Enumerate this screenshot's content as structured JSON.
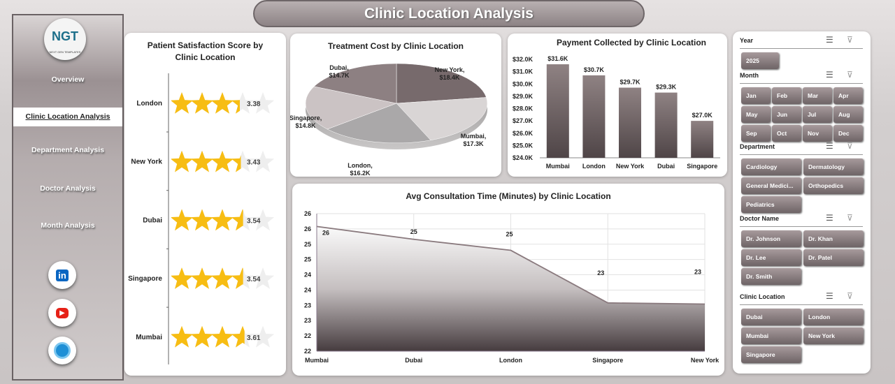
{
  "title": "Clinic Location Analysis",
  "sidebar": {
    "logo_text": "NGT",
    "logo_sub": "NEXT GEN TEMPLATES",
    "items": [
      {
        "label": "Overview"
      },
      {
        "label": "Clinic Location Analysis",
        "active": true
      },
      {
        "label": "Department Analysis"
      },
      {
        "label": "Doctor Analysis"
      },
      {
        "label": "Month Analysis"
      }
    ],
    "social": [
      {
        "icon": "linkedin-icon",
        "text": "in",
        "color": "#0a66c2"
      },
      {
        "icon": "youtube-icon",
        "text": "▶",
        "color": "#e62117"
      },
      {
        "icon": "globe-icon",
        "text": "🌐",
        "color": "#1e8fd6"
      }
    ]
  },
  "chart_data": [
    {
      "type": "bar",
      "title": "Patient Satisfaction Score by Clinic Location",
      "style": "star-rating",
      "max": 5,
      "categories": [
        "London",
        "New York",
        "Dubai",
        "Singapore",
        "Mumbai"
      ],
      "values": [
        3.38,
        3.43,
        3.54,
        3.54,
        3.61
      ],
      "labels": [
        "3.38",
        "3.43",
        "3.54",
        "3.54",
        "3.61"
      ],
      "fill_color": "#f7bd13"
    },
    {
      "type": "pie",
      "title": "Treatment Cost by Clinic Location",
      "categories": [
        "New York",
        "Mumbai",
        "London",
        "Singapore",
        "Dubai"
      ],
      "values": [
        18.4,
        17.3,
        16.2,
        14.8,
        14.7
      ],
      "labels": [
        "New York,\n$18.4K",
        "Mumbai,\n$17.3K",
        "London,\n$16.2K",
        "Singapore,\n$14.8K",
        "Dubai,\n$14.7K"
      ],
      "colors": [
        "#776a6c",
        "#d9d5d5",
        "#aaa8a9",
        "#cbc3c4",
        "#8d8082"
      ]
    },
    {
      "type": "bar",
      "title": "Payment Collected by Clinic Location",
      "categories": [
        "Mumbai",
        "London",
        "New York",
        "Dubai",
        "Singapore"
      ],
      "values": [
        31.6,
        30.7,
        29.7,
        29.3,
        27.0
      ],
      "labels": [
        "$31.6K",
        "$30.7K",
        "$29.7K",
        "$29.3K",
        "$27.0K"
      ],
      "ylim": [
        24,
        32
      ],
      "yticks": [
        "$24.0K",
        "$25.0K",
        "$26.0K",
        "$27.0K",
        "$28.0K",
        "$29.0K",
        "$30.0K",
        "$31.0K",
        "$32.0K"
      ]
    },
    {
      "type": "area",
      "title": "Avg Consultation Time (Minutes) by Clinic Location",
      "categories": [
        "Mumbai",
        "Dubai",
        "London",
        "Singapore",
        "New York"
      ],
      "values": [
        25.58,
        25.16,
        24.8,
        23.08,
        23.04
      ],
      "labels": [
        "26",
        "25",
        "25",
        "23",
        "23"
      ],
      "ylim": [
        21.5,
        26
      ],
      "yticks": [
        "22",
        "22",
        "23",
        "23",
        "24",
        "24",
        "25",
        "25",
        "26",
        "26"
      ],
      "grid": true
    }
  ],
  "slicers": [
    {
      "title": "Year",
      "items": [
        "2025"
      ]
    },
    {
      "title": "Month",
      "items": [
        "Jan",
        "Feb",
        "Mar",
        "Apr",
        "May",
        "Jun",
        "Jul",
        "Aug",
        "Sep",
        "Oct",
        "Nov",
        "Dec"
      ]
    },
    {
      "title": "Department",
      "items": [
        "Cardiology",
        "Dermatology",
        "General Medici...",
        "Orthopedics",
        "Pediatrics"
      ]
    },
    {
      "title": "Doctor Name",
      "items": [
        "Dr. Johnson",
        "Dr. Khan",
        "Dr. Lee",
        "Dr. Patel",
        "Dr. Smith"
      ]
    },
    {
      "title": "Clinic Location",
      "items": [
        "Dubai",
        "London",
        "Mumbai",
        "New York",
        "Singapore"
      ]
    }
  ]
}
